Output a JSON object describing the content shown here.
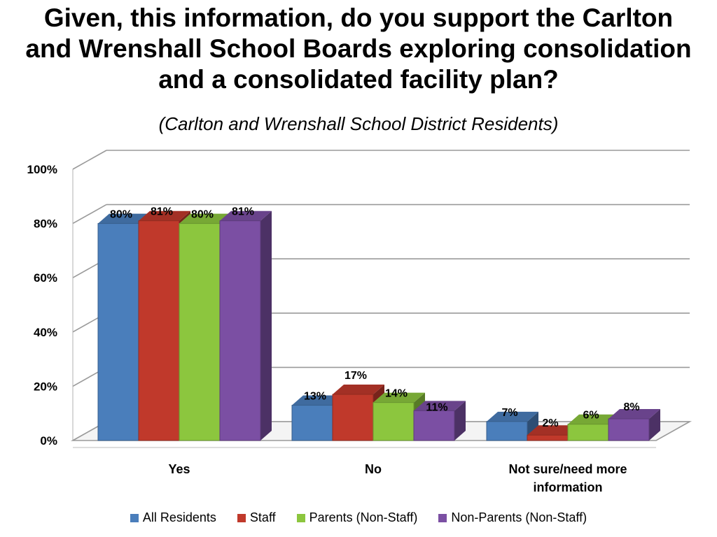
{
  "title_lines": [
    "Given, this information, do you support the Carlton",
    "and Wrenshall School Boards exploring consolidation",
    "and a consolidated facility plan?"
  ],
  "subtitle": "(Carlton and Wrenshall School District Residents)",
  "chart_data": {
    "type": "bar",
    "title": "Given, this information, do you support the Carlton and Wrenshall School Boards exploring consolidation and a consolidated facility plan?",
    "subtitle": "(Carlton and Wrenshall School District Residents)",
    "categories": [
      [
        "Yes"
      ],
      [
        "No"
      ],
      [
        "Not sure/need more",
        "information"
      ]
    ],
    "series": [
      {
        "name": "All Residents",
        "color": "#4a7ebb",
        "values": [
          80,
          13,
          7
        ]
      },
      {
        "name": "Staff",
        "color": "#c0392b",
        "values": [
          81,
          17,
          2
        ]
      },
      {
        "name": "Parents (Non-Staff)",
        "color": "#8cc63e",
        "values": [
          80,
          14,
          6
        ]
      },
      {
        "name": "Non-Parents (Non-Staff)",
        "color": "#7b4fa3",
        "values": [
          81,
          11,
          8
        ]
      }
    ],
    "y_ticks": [
      "0%",
      "20%",
      "40%",
      "60%",
      "80%",
      "100%"
    ],
    "ylim": [
      0,
      100
    ],
    "grid": true,
    "legend": "bottom",
    "three_d": true
  }
}
